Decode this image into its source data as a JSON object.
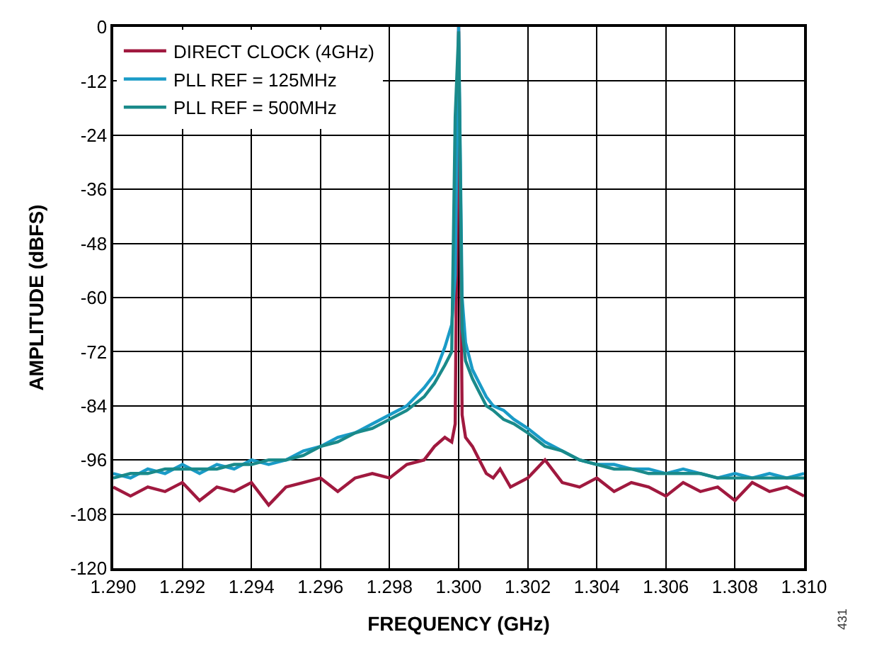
{
  "chart_data": {
    "type": "line",
    "xlabel": "FREQUENCY (GHz)",
    "ylabel": "AMPLITUDE (dBFS)",
    "xlim": [
      1.29,
      1.31
    ],
    "xticks": [
      {
        "value": 1.29,
        "label": "1.290"
      },
      {
        "value": 1.292,
        "label": "1.292"
      },
      {
        "value": 1.294,
        "label": "1.294"
      },
      {
        "value": 1.296,
        "label": "1.296"
      },
      {
        "value": 1.298,
        "label": "1.298"
      },
      {
        "value": 1.3,
        "label": "1.300"
      },
      {
        "value": 1.302,
        "label": "1.302"
      },
      {
        "value": 1.304,
        "label": "1.304"
      },
      {
        "value": 1.306,
        "label": "1.306"
      },
      {
        "value": 1.308,
        "label": "1.308"
      },
      {
        "value": 1.31,
        "label": "1.310"
      }
    ],
    "ylim": [
      -120,
      0
    ],
    "yticks": [
      -120,
      -108,
      -96,
      -84,
      -72,
      -60,
      -48,
      -36,
      -24,
      -12,
      0
    ],
    "grid": true,
    "legend": "top left",
    "annotations": [
      "431"
    ],
    "series": [
      {
        "name": "DIRECT CLOCK (4GHz)",
        "color": "#a0193f",
        "x": [
          1.29,
          1.2905,
          1.291,
          1.2915,
          1.292,
          1.2925,
          1.293,
          1.2935,
          1.294,
          1.2945,
          1.295,
          1.2955,
          1.296,
          1.2965,
          1.297,
          1.2975,
          1.298,
          1.2985,
          1.299,
          1.2993,
          1.2996,
          1.2998,
          1.2999,
          1.3,
          1.3001,
          1.3002,
          1.3004,
          1.3006,
          1.3008,
          1.301,
          1.3012,
          1.3015,
          1.302,
          1.3025,
          1.303,
          1.3035,
          1.304,
          1.3045,
          1.305,
          1.3055,
          1.306,
          1.3065,
          1.307,
          1.3075,
          1.308,
          1.3085,
          1.309,
          1.3095,
          1.31
        ],
        "values": [
          -102,
          -104,
          -102,
          -103,
          -101,
          -105,
          -102,
          -103,
          -101,
          -106,
          -102,
          -101,
          -100,
          -103,
          -100,
          -99,
          -100,
          -97,
          -96,
          -93,
          -91,
          -92,
          -88,
          0,
          -86,
          -91,
          -93,
          -96,
          -99,
          -100,
          -98,
          -102,
          -100,
          -96,
          -101,
          -102,
          -100,
          -103,
          -101,
          -102,
          -104,
          -101,
          -103,
          -102,
          -105,
          -101,
          -103,
          -102,
          -104
        ]
      },
      {
        "name": "PLL REF = 125MHz",
        "color": "#1a9bc7",
        "x": [
          1.29,
          1.2905,
          1.291,
          1.2915,
          1.292,
          1.2925,
          1.293,
          1.2935,
          1.294,
          1.2945,
          1.295,
          1.2955,
          1.296,
          1.2965,
          1.297,
          1.2975,
          1.298,
          1.2985,
          1.299,
          1.2993,
          1.2996,
          1.2998,
          1.2999,
          1.3,
          1.3001,
          1.3002,
          1.3004,
          1.3006,
          1.3008,
          1.301,
          1.3013,
          1.3016,
          1.302,
          1.3025,
          1.303,
          1.3035,
          1.304,
          1.3045,
          1.305,
          1.3055,
          1.306,
          1.3065,
          1.307,
          1.3075,
          1.308,
          1.3085,
          1.309,
          1.3095,
          1.31
        ],
        "values": [
          -99,
          -100,
          -98,
          -99,
          -97,
          -99,
          -97,
          -98,
          -96,
          -97,
          -96,
          -94,
          -93,
          -91,
          -90,
          -88,
          -86,
          -84,
          -80,
          -77,
          -71,
          -66,
          -55,
          0,
          -60,
          -70,
          -76,
          -79,
          -82,
          -84,
          -85,
          -87,
          -89,
          -92,
          -94,
          -96,
          -97,
          -97,
          -98,
          -98,
          -99,
          -98,
          -99,
          -100,
          -99,
          -100,
          -99,
          -100,
          -99
        ]
      },
      {
        "name": "PLL REF = 500MHz",
        "color": "#1a8a8a",
        "x": [
          1.29,
          1.2905,
          1.291,
          1.2915,
          1.292,
          1.2925,
          1.293,
          1.2935,
          1.294,
          1.2945,
          1.295,
          1.2955,
          1.296,
          1.2965,
          1.297,
          1.2975,
          1.298,
          1.2985,
          1.299,
          1.2993,
          1.2996,
          1.2998,
          1.2999,
          1.3,
          1.3001,
          1.3002,
          1.3004,
          1.3006,
          1.3008,
          1.301,
          1.3013,
          1.3016,
          1.302,
          1.3025,
          1.303,
          1.3035,
          1.304,
          1.3045,
          1.305,
          1.3055,
          1.306,
          1.3065,
          1.307,
          1.3075,
          1.308,
          1.3085,
          1.309,
          1.3095,
          1.31
        ],
        "values": [
          -100,
          -99,
          -99,
          -98,
          -98,
          -98,
          -98,
          -97,
          -97,
          -96,
          -96,
          -95,
          -93,
          -92,
          -90,
          -89,
          -87,
          -85,
          -82,
          -79,
          -75,
          -72,
          -20,
          -1,
          -67,
          -74,
          -78,
          -81,
          -84,
          -85,
          -87,
          -88,
          -90,
          -93,
          -94,
          -96,
          -97,
          -98,
          -98,
          -99,
          -99,
          -99,
          -99,
          -100,
          -100,
          -100,
          -100,
          -100,
          -100
        ]
      }
    ]
  }
}
